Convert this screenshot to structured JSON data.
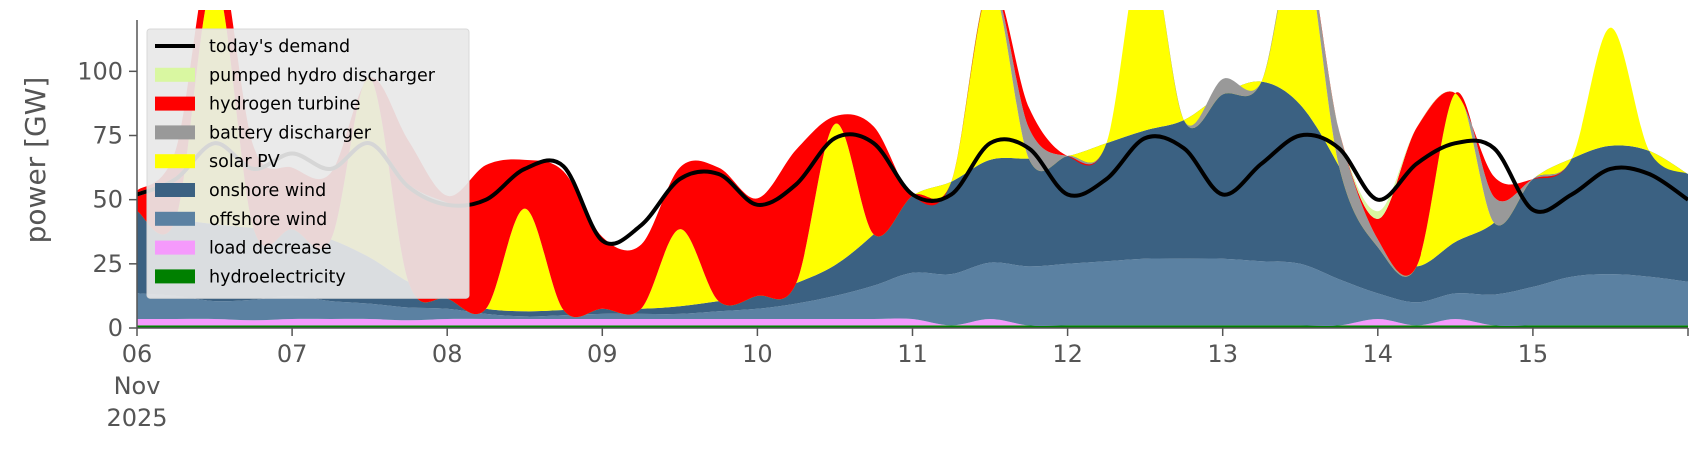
{
  "chart_data": {
    "type": "area",
    "title": "",
    "xlabel": "",
    "ylabel": "power [GW]",
    "ylim": [
      0,
      120
    ],
    "xlim": [
      0,
      10
    ],
    "yticks": [
      {
        "value": 0,
        "label": "0"
      },
      {
        "value": 25,
        "label": "25"
      },
      {
        "value": 50,
        "label": "50"
      },
      {
        "value": 75,
        "label": "75"
      },
      {
        "value": 100,
        "label": "100"
      }
    ],
    "xticks": [
      {
        "value": 0,
        "label": "06",
        "sub1": "Nov",
        "sub2": "2025"
      },
      {
        "value": 1,
        "label": "07"
      },
      {
        "value": 2,
        "label": "08"
      },
      {
        "value": 3,
        "label": "09"
      },
      {
        "value": 4,
        "label": "10"
      },
      {
        "value": 5,
        "label": "11"
      },
      {
        "value": 6,
        "label": "12"
      },
      {
        "value": 7,
        "label": "13"
      },
      {
        "value": 8,
        "label": "14"
      },
      {
        "value": 9,
        "label": "15"
      }
    ],
    "x_unit": "days since 06 Nov 2025",
    "grid": false,
    "legend_position": "top-left",
    "legend": [
      {
        "name": "today's demand",
        "kind": "line",
        "color": "#000000"
      },
      {
        "name": "pumped hydro discharger",
        "kind": "patch",
        "color": "#d9f7a1"
      },
      {
        "name": "hydrogen turbine",
        "kind": "patch",
        "color": "#ff0000"
      },
      {
        "name": "battery discharger",
        "kind": "patch",
        "color": "#999999"
      },
      {
        "name": "solar PV",
        "kind": "patch",
        "color": "#ffff00"
      },
      {
        "name": "onshore wind",
        "kind": "patch",
        "color": "#3b6182"
      },
      {
        "name": "offshore wind",
        "kind": "patch",
        "color": "#5b81a2"
      },
      {
        "name": "load decrease",
        "kind": "patch",
        "color": "#f59afc"
      },
      {
        "name": "hydroelectricity",
        "kind": "patch",
        "color": "#008000"
      }
    ],
    "stack_order_bottom_to_top": [
      "hydroelectricity",
      "load decrease",
      "offshore wind",
      "onshore wind",
      "solar PV",
      "battery discharger",
      "hydrogen turbine",
      "pumped hydro discharger"
    ],
    "x": [
      0.0,
      0.25,
      0.5,
      0.75,
      1.0,
      1.25,
      1.5,
      1.75,
      2.0,
      2.25,
      2.5,
      2.75,
      3.0,
      3.25,
      3.5,
      3.75,
      4.0,
      4.25,
      4.5,
      4.75,
      5.0,
      5.25,
      5.5,
      5.75,
      6.0,
      6.25,
      6.5,
      6.75,
      7.0,
      7.25,
      7.5,
      7.75,
      8.0,
      8.25,
      8.5,
      8.75,
      9.0,
      9.25,
      9.5,
      9.75,
      10.0
    ],
    "series": [
      {
        "name": "hydroelectricity",
        "color": "#008000",
        "values": [
          1,
          1,
          1,
          1,
          1,
          1,
          1,
          1,
          1,
          1,
          1,
          1,
          1,
          1,
          1,
          1,
          1,
          1,
          1,
          1,
          1,
          1,
          1,
          1,
          1,
          1,
          1,
          1,
          1,
          1,
          1,
          1,
          1,
          1,
          1,
          1,
          1,
          1,
          1,
          1,
          1
        ]
      },
      {
        "name": "load decrease",
        "color": "#f59afc",
        "values": [
          2.5,
          2.5,
          2.5,
          2,
          2.5,
          2.5,
          2.5,
          2,
          2.5,
          2.5,
          2.5,
          2.5,
          2.5,
          2.5,
          2.5,
          2.5,
          2.5,
          2.5,
          2.5,
          2.5,
          2.5,
          0,
          2.5,
          0,
          0,
          0,
          0,
          0,
          0,
          0,
          0,
          0,
          2.5,
          0,
          2.5,
          0,
          0,
          0,
          0,
          0,
          0
        ]
      },
      {
        "name": "offshore wind",
        "color": "#5b81a2",
        "values": [
          10,
          9,
          7,
          8,
          9,
          7,
          6,
          5,
          4,
          2,
          1,
          1.5,
          2,
          2,
          2,
          3,
          4,
          6,
          9,
          13,
          18,
          20,
          22,
          23,
          24,
          25,
          26,
          26,
          26,
          25,
          24,
          18,
          10,
          9,
          10,
          12,
          15,
          19,
          20,
          19,
          17
        ]
      },
      {
        "name": "onshore wind",
        "color": "#3b6182",
        "values": [
          32,
          30,
          30,
          28,
          26,
          24,
          18,
          10,
          4,
          2,
          2,
          2,
          2,
          2,
          3,
          4,
          5,
          8,
          12,
          20,
          30,
          36,
          40,
          42,
          42,
          46,
          50,
          54,
          64,
          70,
          62,
          44,
          18,
          14,
          20,
          28,
          42,
          46,
          50,
          49,
          42
        ]
      },
      {
        "name": "solar PV",
        "color": "#ffff00",
        "values": [
          0,
          0,
          95,
          0,
          0,
          0,
          70,
          0,
          0,
          0,
          40,
          0,
          0,
          0,
          30,
          0,
          0,
          0,
          55,
          0,
          0,
          0,
          68,
          0,
          0,
          0,
          75,
          0,
          0,
          0,
          68,
          0,
          0,
          0,
          58,
          0,
          0,
          0,
          46,
          0,
          0
        ]
      },
      {
        "name": "battery discharger",
        "color": "#999999",
        "values": [
          0,
          0,
          0,
          0,
          0,
          0,
          0,
          0,
          0,
          0,
          0,
          0,
          0,
          0,
          0,
          0,
          0,
          0,
          0,
          0,
          0,
          0,
          0,
          12,
          0,
          0,
          0,
          0,
          6,
          0,
          0,
          14,
          3,
          0,
          0,
          10,
          0,
          0,
          0,
          0,
          0
        ]
      },
      {
        "name": "hydrogen turbine",
        "color": "#ff0000",
        "values": [
          8,
          27,
          14,
          32,
          24,
          26,
          0,
          55,
          40,
          56,
          19,
          54,
          28,
          25,
          24,
          52,
          38,
          52,
          3,
          42,
          0,
          0,
          0,
          8,
          0,
          0,
          0,
          0,
          0,
          0,
          0,
          0,
          8,
          54,
          0,
          8,
          0,
          0,
          0,
          0,
          0
        ]
      },
      {
        "name": "pumped hydro discharger",
        "color": "#d9f7a1",
        "values": [
          0,
          0,
          0,
          0,
          0,
          0,
          0,
          0,
          0,
          0,
          0,
          0,
          0,
          0,
          0,
          0,
          0,
          0,
          0,
          0,
          0,
          0,
          0,
          0,
          0,
          0,
          0,
          0,
          0,
          0,
          0,
          0,
          3,
          0,
          0,
          0,
          0,
          0,
          0,
          0,
          0
        ]
      }
    ],
    "demand": {
      "name": "today's demand",
      "color": "#000000",
      "values": [
        52,
        58,
        72,
        62,
        68,
        62,
        72,
        55,
        48,
        50,
        62,
        63,
        34,
        40,
        58,
        60,
        48,
        56,
        74,
        72,
        52,
        52,
        72,
        70,
        52,
        58,
        74,
        70,
        52,
        64,
        75,
        70,
        50,
        64,
        72,
        70,
        46,
        52,
        62,
        60,
        50
      ]
    },
    "previous_demand": {
      "color": "#b0b0b0",
      "values": [
        52,
        58,
        72,
        62,
        68,
        62,
        72,
        55,
        48
      ]
    }
  }
}
